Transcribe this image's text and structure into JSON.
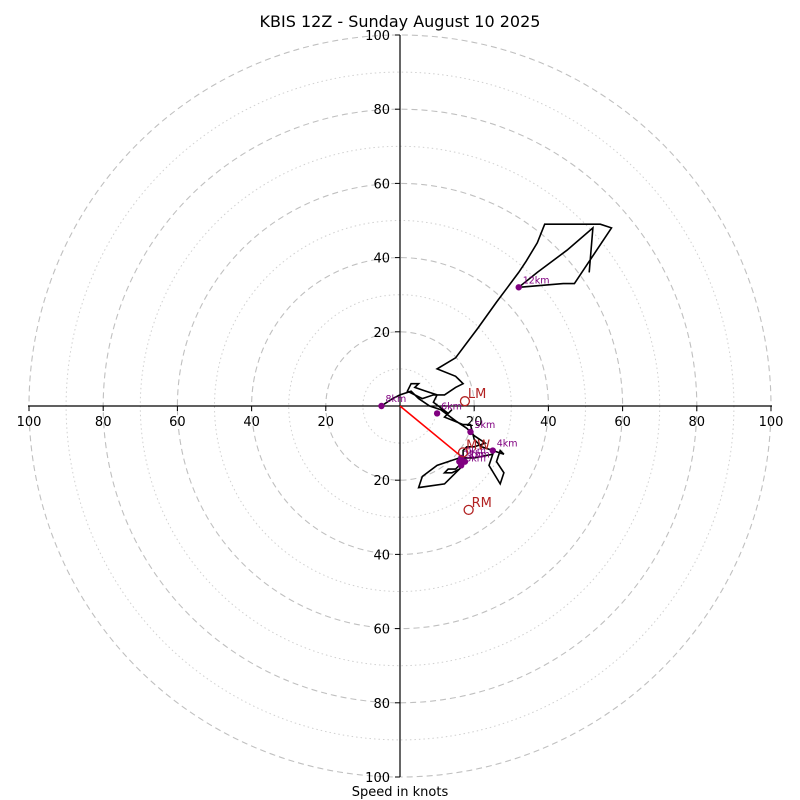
{
  "chart_data": {
    "type": "hodograph",
    "title": "KBIS 12Z - Sunday August 10 2025",
    "xlabel": "Speed in knots",
    "xlim": [
      -100,
      100
    ],
    "ylim": [
      -100,
      100
    ],
    "x_ticks": [
      "100",
      "80",
      "60",
      "40",
      "20",
      "20",
      "40",
      "60",
      "80",
      "100"
    ],
    "x_tick_values": [
      -100,
      -80,
      -60,
      -40,
      -20,
      20,
      40,
      60,
      80,
      100
    ],
    "y_ticks": [
      "100",
      "80",
      "60",
      "40",
      "20",
      "20",
      "40",
      "60",
      "80",
      "100"
    ],
    "y_tick_values": [
      100,
      80,
      60,
      40,
      20,
      -20,
      -40,
      -60,
      -80,
      -100
    ],
    "rings_dashed": [
      20,
      40,
      60,
      80,
      100
    ],
    "rings_dotted": [
      10,
      30,
      50,
      70,
      90
    ],
    "hodograph_line": {
      "color": "#000000",
      "points": [
        [
          -5,
          0
        ],
        [
          -2,
          2
        ],
        [
          0,
          3
        ],
        [
          3,
          4
        ],
        [
          5,
          2
        ],
        [
          8,
          0
        ],
        [
          11,
          -1
        ],
        [
          15,
          -4
        ],
        [
          18,
          -6
        ],
        [
          20,
          -8
        ],
        [
          23,
          -10
        ],
        [
          20,
          -11
        ],
        [
          18,
          -11
        ],
        [
          17,
          -12
        ],
        [
          17,
          -15
        ],
        [
          15,
          -17
        ],
        [
          13,
          -17
        ],
        [
          12,
          -18
        ],
        [
          14,
          -18
        ],
        [
          16,
          -17
        ],
        [
          17,
          -16
        ],
        [
          12,
          -21
        ],
        [
          5,
          -22
        ],
        [
          6,
          -19
        ],
        [
          10,
          -16
        ],
        [
          16,
          -14
        ],
        [
          20,
          -14
        ],
        [
          25,
          -13
        ],
        [
          24,
          -16
        ],
        [
          27,
          -21
        ],
        [
          28,
          -18
        ],
        [
          26,
          -15
        ],
        [
          27,
          -12
        ],
        [
          28,
          -13
        ],
        [
          22,
          -11
        ],
        [
          20,
          -9
        ],
        [
          19,
          -5
        ],
        [
          17,
          -5
        ],
        [
          12,
          -3
        ],
        [
          14,
          -1
        ],
        [
          13,
          -2
        ],
        [
          9,
          1
        ],
        [
          10,
          3
        ],
        [
          7,
          4
        ],
        [
          4,
          5
        ],
        [
          5,
          6
        ],
        [
          3,
          6
        ],
        [
          2,
          4
        ],
        [
          4,
          3
        ],
        [
          6,
          2
        ],
        [
          9,
          3
        ],
        [
          12,
          3
        ],
        [
          15,
          5
        ],
        [
          17,
          6
        ],
        [
          16,
          7
        ],
        [
          15,
          8
        ],
        [
          10,
          10
        ],
        [
          15,
          13
        ],
        [
          18,
          17
        ],
        [
          21,
          21
        ],
        [
          26,
          28
        ],
        [
          29,
          32
        ],
        [
          32,
          36
        ],
        [
          34,
          39
        ],
        [
          37,
          44
        ],
        [
          39,
          49
        ],
        [
          50,
          49
        ],
        [
          54,
          49
        ],
        [
          57,
          48
        ],
        [
          47,
          33
        ],
        [
          44,
          33
        ],
        [
          32,
          32
        ],
        [
          37,
          36
        ],
        [
          45,
          42
        ],
        [
          52,
          48
        ],
        [
          51,
          36
        ]
      ]
    },
    "height_markers": [
      {
        "label": "0km",
        "x": 16.5,
        "y": -14
      },
      {
        "label": "1km",
        "x": 17.5,
        "y": -15
      },
      {
        "label": "2km",
        "x": 16,
        "y": -15
      },
      {
        "label": "3km",
        "x": 16.5,
        "y": -16
      },
      {
        "label": "4km",
        "x": 25,
        "y": -12
      },
      {
        "label": "5km",
        "x": 19,
        "y": -7
      },
      {
        "label": "6km",
        "x": 10,
        "y": -2
      },
      {
        "label": "8km",
        "x": -5,
        "y": 0
      },
      {
        "label": "12km",
        "x": 32,
        "y": 32
      }
    ],
    "storm_motions": [
      {
        "label": "LM",
        "x": 17.5,
        "y": 1.3
      },
      {
        "label": "RM",
        "x": 18.5,
        "y": -28
      },
      {
        "label": "MW",
        "x": 17,
        "y": -12.5
      }
    ],
    "shear_vector": {
      "x1": 0,
      "y1": 0,
      "x2": 17,
      "y2": -14,
      "color": "#ff0000"
    },
    "colors": {
      "marker": "#800080",
      "storm_motion": "#b22222",
      "grid": "#c0c0c0",
      "axis": "#000000"
    }
  }
}
